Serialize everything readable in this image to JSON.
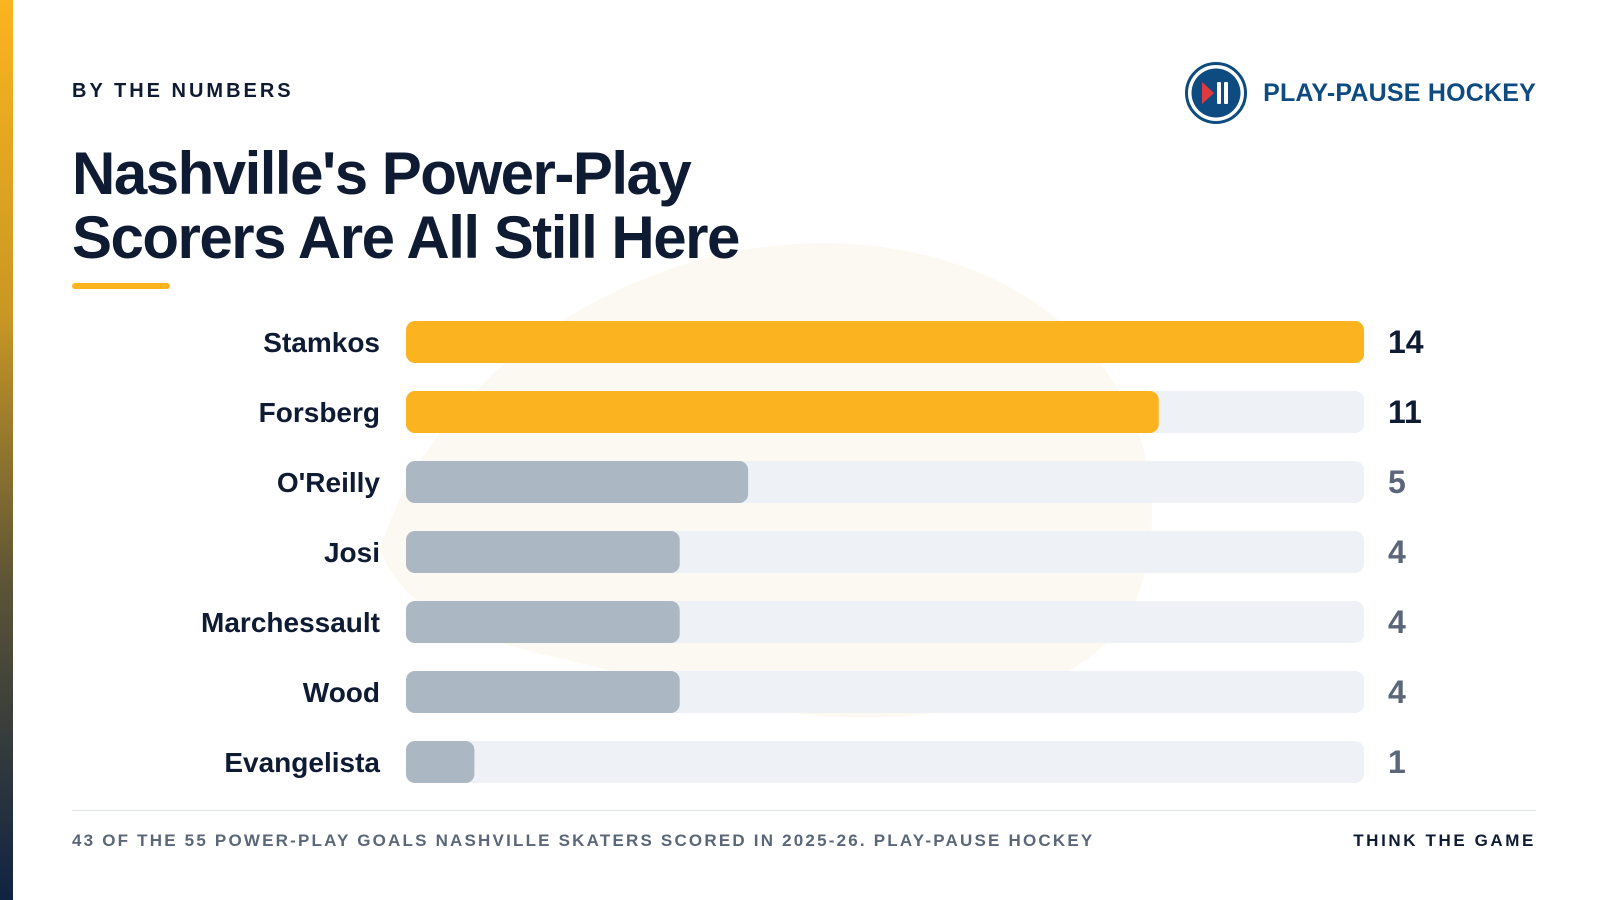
{
  "header": {
    "kicker": "BY THE NUMBERS",
    "title": "Nashville's Power-Play Scorers Are All Still Here",
    "brand_name": "PLAY-PAUSE HOCKEY",
    "brand_logo_icon": "play-pause-icon"
  },
  "footer": {
    "note": "43 OF THE 55 POWER-PLAY GOALS NASHVILLE SKATERS SCORED IN 2025-26. PLAY-PAUSE HOCKEY",
    "tagline": "THINK THE GAME"
  },
  "colors": {
    "highlight": "#fbb41f",
    "muted_bar": "#abb8c3",
    "track": "#eef2f6",
    "brand": "#0e4b80",
    "text_dark": "#0f1b33",
    "value_muted": "#5b6778"
  },
  "chart_data": {
    "type": "bar",
    "orientation": "horizontal",
    "categories": [
      "Stamkos",
      "Forsberg",
      "O'Reilly",
      "Josi",
      "Marchessault",
      "Wood",
      "Evangelista"
    ],
    "values": [
      14,
      11,
      5,
      4,
      4,
      4,
      1
    ],
    "highlighted": [
      true,
      true,
      false,
      false,
      false,
      false,
      false
    ],
    "xlim": [
      0,
      14
    ],
    "title": "Nashville's Power-Play Scorers Are All Still Here",
    "xlabel": "",
    "ylabel": "",
    "grid": false,
    "legend": "none"
  }
}
